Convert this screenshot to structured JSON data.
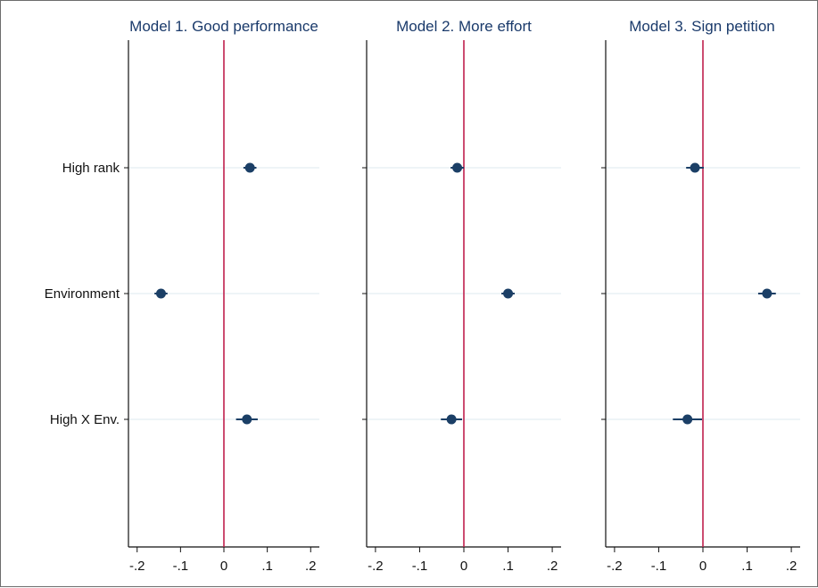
{
  "chart_data": [
    {
      "type": "scatter",
      "title": "Model 1. Good performance",
      "categories": [
        "High rank",
        "Environment",
        "High X Env."
      ],
      "estimates": [
        0.06,
        -0.145,
        0.053
      ],
      "ci_low": [
        0.045,
        -0.16,
        0.028
      ],
      "ci_high": [
        0.075,
        -0.13,
        0.078
      ],
      "xlim": [
        -0.22,
        0.22
      ],
      "xticks": [
        -0.2,
        -0.1,
        0,
        0.1,
        0.2
      ],
      "xtick_labels": [
        "-.2",
        "-.1",
        "0",
        ".1",
        ".2"
      ],
      "reference_line": 0
    },
    {
      "type": "scatter",
      "title": "Model 2. More effort",
      "categories": [
        "High rank",
        "Environment",
        "High X Env."
      ],
      "estimates": [
        -0.015,
        0.1,
        -0.028
      ],
      "ci_low": [
        -0.03,
        0.085,
        -0.052
      ],
      "ci_high": [
        0.0,
        0.115,
        -0.004
      ],
      "xlim": [
        -0.22,
        0.22
      ],
      "xticks": [
        -0.2,
        -0.1,
        0,
        0.1,
        0.2
      ],
      "xtick_labels": [
        "-.2",
        "-.1",
        "0",
        ".1",
        ".2"
      ],
      "reference_line": 0
    },
    {
      "type": "scatter",
      "title": "Model 3. Sign petition",
      "categories": [
        "High rank",
        "Environment",
        "High X Env."
      ],
      "estimates": [
        -0.018,
        0.145,
        -0.035
      ],
      "ci_low": [
        -0.038,
        0.125,
        -0.068
      ],
      "ci_high": [
        0.002,
        0.165,
        -0.002
      ],
      "xlim": [
        -0.22,
        0.22
      ],
      "xticks": [
        -0.2,
        -0.1,
        0,
        0.1,
        0.2
      ],
      "xtick_labels": [
        "-.2",
        "-.1",
        "0",
        ".1",
        ".2"
      ],
      "reference_line": 0
    }
  ],
  "colors": {
    "marker": "#1b3f66",
    "ci": "#1b3f66",
    "reference_line": "#c0204d",
    "gridline": "#e4eef2",
    "axis": "#111111"
  }
}
